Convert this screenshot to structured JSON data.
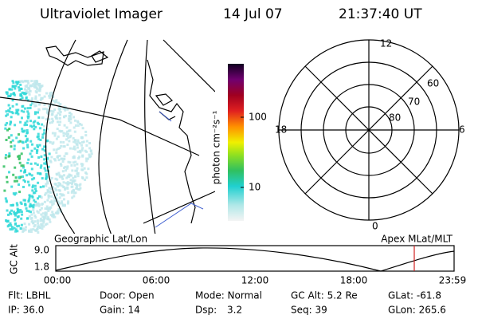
{
  "header": {
    "title": "Ultraviolet Imager",
    "date": "14 Jul 07",
    "time": "21:37:40 UT"
  },
  "colorbar": {
    "label": "photon cm⁻²s⁻¹",
    "ticks": [
      "100",
      "10"
    ]
  },
  "polar": {
    "mlt_labels": [
      "12",
      "18",
      "6",
      "0"
    ],
    "lat_labels": [
      "60",
      "70",
      "80"
    ]
  },
  "panel_labels": {
    "left": "Geographic Lat/Lon",
    "right": "Apex MLat/MLT"
  },
  "altitude_strip": {
    "axis_label": "GC Alt",
    "y_labels": [
      "9.0",
      "1.8"
    ],
    "time_labels": [
      "00:00",
      "06:00",
      "12:00",
      "18:00",
      "23:59"
    ]
  },
  "footer": {
    "rows": [
      [
        "Flt: LBHL",
        "Door: Open",
        "Mode: Normal",
        "GC Alt: 5.2 Re",
        "GLat: -61.8"
      ],
      [
        "IP: 36.0",
        "Gain: 14",
        "Dsp:",
        "3.2",
        "Seq: 39",
        "GLon: 265.6"
      ]
    ]
  }
}
